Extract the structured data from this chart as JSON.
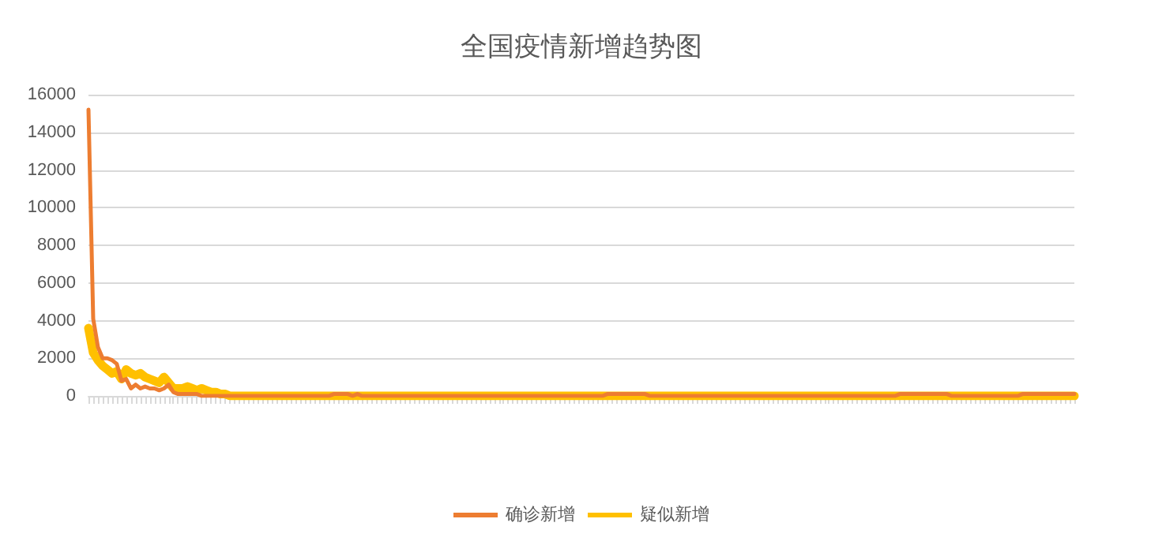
{
  "chart_data": {
    "type": "line",
    "title": "全国疫情新增趋势图",
    "categories": [
      null,
      null,
      null,
      null,
      null,
      null,
      null,
      null,
      null,
      null,
      null,
      null,
      null,
      null,
      null,
      null,
      null,
      null,
      null,
      null,
      null,
      null,
      null,
      null,
      null,
      null,
      null,
      null,
      null,
      null,
      null,
      null,
      null,
      null,
      null,
      null,
      null,
      null,
      null,
      null,
      null,
      null,
      null,
      null,
      null,
      null,
      null,
      null,
      null,
      null,
      null,
      null,
      null,
      null,
      null,
      null,
      null,
      null,
      null,
      null,
      null,
      null,
      null,
      null,
      null,
      null,
      null,
      null,
      null,
      null,
      null,
      null,
      null,
      null,
      null,
      null,
      null,
      null,
      null,
      null,
      null,
      null,
      null,
      null,
      null,
      null,
      null,
      null,
      null,
      null,
      null,
      null,
      null,
      null,
      null,
      null,
      null,
      null,
      null,
      null,
      null,
      null,
      null,
      null,
      null,
      null,
      null,
      null,
      null,
      null,
      null,
      null,
      null,
      null,
      null,
      null,
      null,
      null,
      null,
      null,
      null,
      null,
      null,
      null,
      null,
      null,
      null,
      null,
      null,
      null,
      null,
      null,
      null,
      null,
      null,
      null,
      null,
      null,
      null,
      null,
      null,
      null,
      null,
      null,
      null,
      null,
      null,
      null,
      null,
      null,
      null,
      null,
      null,
      null,
      null,
      null,
      null,
      null,
      null,
      null,
      null,
      null,
      null,
      null,
      null,
      null,
      null,
      null,
      null,
      null,
      null,
      null,
      null,
      null,
      null,
      null,
      null,
      null,
      null,
      null,
      null,
      null,
      null,
      null,
      null,
      null,
      null,
      null,
      null,
      null,
      null,
      null,
      null,
      null,
      null,
      null,
      null,
      null,
      null,
      null,
      null,
      null,
      null,
      null,
      null,
      null,
      null,
      null,
      null,
      null
    ],
    "series": [
      {
        "name": "确诊新增",
        "color": "#ed7d31",
        "values": [
          15200,
          4100,
          2600,
          2000,
          2000,
          1900,
          1700,
          800,
          900,
          400,
          600,
          400,
          500,
          400,
          400,
          300,
          400,
          600,
          200,
          100,
          100,
          100,
          100,
          100,
          0,
          0,
          0,
          0,
          0,
          0,
          0,
          0,
          0,
          0,
          0,
          0,
          0,
          0,
          0,
          0,
          0,
          0,
          0,
          0,
          0,
          0,
          0,
          0,
          0,
          0,
          0,
          0,
          100,
          100,
          100,
          100,
          0,
          100,
          0,
          0,
          0,
          0,
          0,
          0,
          0,
          0,
          0,
          0,
          0,
          0,
          0,
          0,
          0,
          0,
          0,
          0,
          0,
          0,
          0,
          0,
          0,
          0,
          0,
          0,
          0,
          0,
          0,
          0,
          0,
          0,
          0,
          0,
          0,
          0,
          0,
          0,
          0,
          0,
          0,
          0,
          0,
          0,
          0,
          0,
          0,
          0,
          0,
          0,
          0,
          0,
          100,
          100,
          100,
          100,
          100,
          100,
          100,
          100,
          100,
          0,
          0,
          0,
          0,
          0,
          0,
          0,
          0,
          0,
          0,
          0,
          0,
          0,
          0,
          0,
          0,
          0,
          0,
          0,
          0,
          0,
          0,
          0,
          0,
          0,
          0,
          0,
          0,
          0,
          0,
          0,
          0,
          0,
          0,
          0,
          0,
          0,
          0,
          0,
          0,
          0,
          0,
          0,
          0,
          0,
          0,
          0,
          0,
          0,
          0,
          0,
          0,
          0,
          100,
          100,
          100,
          100,
          100,
          100,
          100,
          100,
          100,
          100,
          100,
          0,
          0,
          0,
          0,
          0,
          0,
          0,
          0,
          0,
          0,
          0,
          0,
          0,
          0,
          0,
          100,
          100,
          100,
          100,
          100,
          100,
          100,
          100,
          100,
          100,
          100,
          100
        ]
      },
      {
        "name": "疑似新增",
        "color": "#ffc000",
        "values": [
          3600,
          2300,
          1900,
          1600,
          1400,
          1200,
          1300,
          900,
          1400,
          1200,
          1100,
          1200,
          1000,
          900,
          800,
          700,
          1000,
          700,
          400,
          400,
          400,
          500,
          400,
          300,
          400,
          300,
          200,
          200,
          100,
          100,
          0,
          0,
          0,
          0,
          0,
          0,
          0,
          0,
          0,
          0,
          0,
          0,
          0,
          0,
          0,
          0,
          0,
          0,
          0,
          0,
          0,
          0,
          0,
          0,
          0,
          0,
          0,
          0,
          0,
          0,
          0,
          0,
          0,
          0,
          0,
          0,
          0,
          0,
          0,
          0,
          0,
          0,
          0,
          0,
          0,
          0,
          0,
          0,
          0,
          0,
          0,
          0,
          0,
          0,
          0,
          0,
          0,
          0,
          0,
          0,
          0,
          0,
          0,
          0,
          0,
          0,
          0,
          0,
          0,
          0,
          0,
          0,
          0,
          0,
          0,
          0,
          0,
          0,
          0,
          0,
          0,
          0,
          0,
          0,
          0,
          0,
          0,
          0,
          0,
          0,
          0,
          0,
          0,
          0,
          0,
          0,
          0,
          0,
          0,
          0,
          0,
          0,
          0,
          0,
          0,
          0,
          0,
          0,
          0,
          0,
          0,
          0,
          0,
          0,
          0,
          0,
          0,
          0,
          0,
          0,
          0,
          0,
          0,
          0,
          0,
          0,
          0,
          0,
          0,
          0,
          0,
          0,
          0,
          0,
          0,
          0,
          0,
          0,
          0,
          0,
          0,
          0,
          0,
          0,
          0,
          0,
          0,
          0,
          0,
          0,
          0,
          0,
          0,
          0,
          0,
          0,
          0,
          0,
          0,
          0,
          0,
          0,
          0,
          0,
          0,
          0,
          0,
          0,
          0,
          0,
          0,
          0,
          0,
          0,
          0,
          0,
          0,
          0,
          0,
          0
        ]
      }
    ],
    "ylim": [
      0,
      16000
    ],
    "yticks": [
      0,
      2000,
      4000,
      6000,
      8000,
      10000,
      12000,
      14000,
      16000
    ],
    "grid": "y",
    "legend": "bottom",
    "marker": "none",
    "line_style": "solid"
  }
}
